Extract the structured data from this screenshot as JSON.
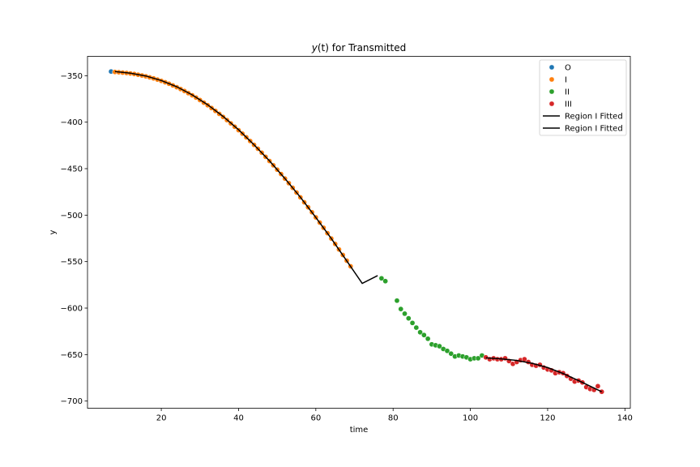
{
  "chart_data": {
    "type": "scatter",
    "title_prefix": "y",
    "title_var": "(t)",
    "title_suffix": " for Transmitted",
    "xlabel": "time",
    "ylabel": "y",
    "xlim": [
      0.9,
      141.4
    ],
    "ylim": [
      -707.7,
      -329.2
    ],
    "xticks": [
      20,
      40,
      60,
      80,
      100,
      120,
      140
    ],
    "yticks": [
      -350,
      -400,
      -450,
      -500,
      -550,
      -600,
      -650,
      -700
    ],
    "legend_position": "top-right",
    "grid": false,
    "series": [
      {
        "name": "O",
        "kind": "scatter",
        "color": "#1f77b4",
        "points": [
          [
            7,
            -345.5
          ]
        ]
      },
      {
        "name": "I",
        "kind": "scatter",
        "color": "#ff7f0e",
        "points": [
          [
            8,
            -346.0
          ],
          [
            9,
            -346.3
          ],
          [
            10,
            -346.7
          ],
          [
            11,
            -347.1
          ],
          [
            12,
            -347.6
          ],
          [
            13,
            -348.2
          ],
          [
            14,
            -349.0
          ],
          [
            15,
            -349.8
          ],
          [
            16,
            -350.7
          ],
          [
            17,
            -351.8
          ],
          [
            18,
            -352.9
          ],
          [
            19,
            -354.2
          ],
          [
            20,
            -355.6
          ],
          [
            21,
            -357.1
          ],
          [
            22,
            -358.7
          ],
          [
            23,
            -360.5
          ],
          [
            24,
            -362.4
          ],
          [
            25,
            -364.4
          ],
          [
            26,
            -366.5
          ],
          [
            27,
            -368.8
          ],
          [
            28,
            -371.1
          ],
          [
            29,
            -373.6
          ],
          [
            30,
            -376.2
          ],
          [
            31,
            -379.0
          ],
          [
            32,
            -381.8
          ],
          [
            33,
            -384.8
          ],
          [
            34,
            -387.9
          ],
          [
            35,
            -391.1
          ],
          [
            36,
            -394.4
          ],
          [
            37,
            -397.8
          ],
          [
            38,
            -401.3
          ],
          [
            39,
            -404.9
          ],
          [
            40,
            -408.6
          ],
          [
            41,
            -412.4
          ],
          [
            42,
            -416.3
          ],
          [
            43,
            -420.3
          ],
          [
            44,
            -424.4
          ],
          [
            45,
            -428.6
          ],
          [
            46,
            -432.9
          ],
          [
            47,
            -437.3
          ],
          [
            48,
            -441.8
          ],
          [
            49,
            -446.4
          ],
          [
            50,
            -451.1
          ],
          [
            51,
            -455.8
          ],
          [
            52,
            -460.7
          ],
          [
            53,
            -465.6
          ],
          [
            54,
            -470.6
          ],
          [
            55,
            -475.7
          ],
          [
            56,
            -480.9
          ],
          [
            57,
            -486.2
          ],
          [
            58,
            -491.5
          ],
          [
            59,
            -496.9
          ],
          [
            60,
            -502.4
          ],
          [
            61,
            -508.0
          ],
          [
            62,
            -513.6
          ],
          [
            63,
            -519.4
          ],
          [
            64,
            -525.2
          ],
          [
            65,
            -531.0
          ],
          [
            66,
            -536.9
          ],
          [
            67,
            -542.9
          ],
          [
            68,
            -549.0
          ],
          [
            69,
            -555.1
          ]
        ]
      },
      {
        "name": "II",
        "kind": "scatter",
        "color": "#2ca02c",
        "points": [
          [
            77,
            -568
          ],
          [
            78,
            -571
          ],
          [
            81,
            -592
          ],
          [
            82,
            -601
          ],
          [
            83,
            -606
          ],
          [
            84,
            -611
          ],
          [
            85,
            -616
          ],
          [
            86,
            -621
          ],
          [
            87,
            -626
          ],
          [
            88,
            -629
          ],
          [
            89,
            -633
          ],
          [
            90,
            -639
          ],
          [
            91,
            -640
          ],
          [
            92,
            -641
          ],
          [
            93,
            -644
          ],
          [
            94,
            -646
          ],
          [
            95,
            -649
          ],
          [
            96,
            -652
          ],
          [
            97,
            -651
          ],
          [
            98,
            -652
          ],
          [
            99,
            -653
          ],
          [
            100,
            -655
          ],
          [
            101,
            -654
          ],
          [
            102,
            -654
          ],
          [
            103,
            -651
          ]
        ]
      },
      {
        "name": "III",
        "kind": "scatter",
        "color": "#d62728",
        "points": [
          [
            104,
            -653
          ],
          [
            105,
            -655
          ],
          [
            106,
            -654
          ],
          [
            107,
            -655
          ],
          [
            108,
            -655
          ],
          [
            109,
            -654
          ],
          [
            110,
            -657
          ],
          [
            111,
            -660
          ],
          [
            112,
            -658
          ],
          [
            113,
            -656
          ],
          [
            114,
            -655
          ],
          [
            115,
            -658
          ],
          [
            116,
            -661
          ],
          [
            117,
            -662
          ],
          [
            118,
            -661
          ],
          [
            119,
            -664
          ],
          [
            120,
            -666
          ],
          [
            121,
            -667
          ],
          [
            122,
            -670
          ],
          [
            123,
            -669
          ],
          [
            124,
            -670
          ],
          [
            125,
            -673
          ],
          [
            126,
            -676
          ],
          [
            127,
            -679
          ],
          [
            128,
            -678
          ],
          [
            129,
            -680
          ],
          [
            130,
            -685
          ],
          [
            131,
            -687
          ],
          [
            132,
            -688
          ],
          [
            133,
            -684
          ],
          [
            134,
            -690
          ]
        ]
      },
      {
        "name": "Region I Fitted",
        "kind": "line",
        "color": "#000000",
        "points": [
          [
            8,
            -345.5
          ],
          [
            12,
            -347.3
          ],
          [
            16,
            -350.3
          ],
          [
            20,
            -355.2
          ],
          [
            24,
            -361.9
          ],
          [
            28,
            -370.6
          ],
          [
            32,
            -381.3
          ],
          [
            36,
            -393.8
          ],
          [
            40,
            -408.2
          ],
          [
            44,
            -424.3
          ],
          [
            48,
            -441.6
          ],
          [
            52,
            -460.6
          ],
          [
            56,
            -480.8
          ],
          [
            60,
            -502.5
          ],
          [
            64,
            -525.2
          ],
          [
            68,
            -549.2
          ],
          [
            72,
            -573.4
          ],
          [
            76,
            -565.0
          ]
        ]
      },
      {
        "name": "Region I Fitted",
        "kind": "line",
        "color": "#000000",
        "points": [
          [
            104,
            -653.5
          ],
          [
            108,
            -654.6
          ],
          [
            112,
            -656.3
          ],
          [
            116,
            -659.4
          ],
          [
            120,
            -664.0
          ],
          [
            124,
            -670.4
          ],
          [
            128,
            -678.0
          ],
          [
            131,
            -684.0
          ],
          [
            134,
            -690.0
          ]
        ]
      }
    ]
  }
}
